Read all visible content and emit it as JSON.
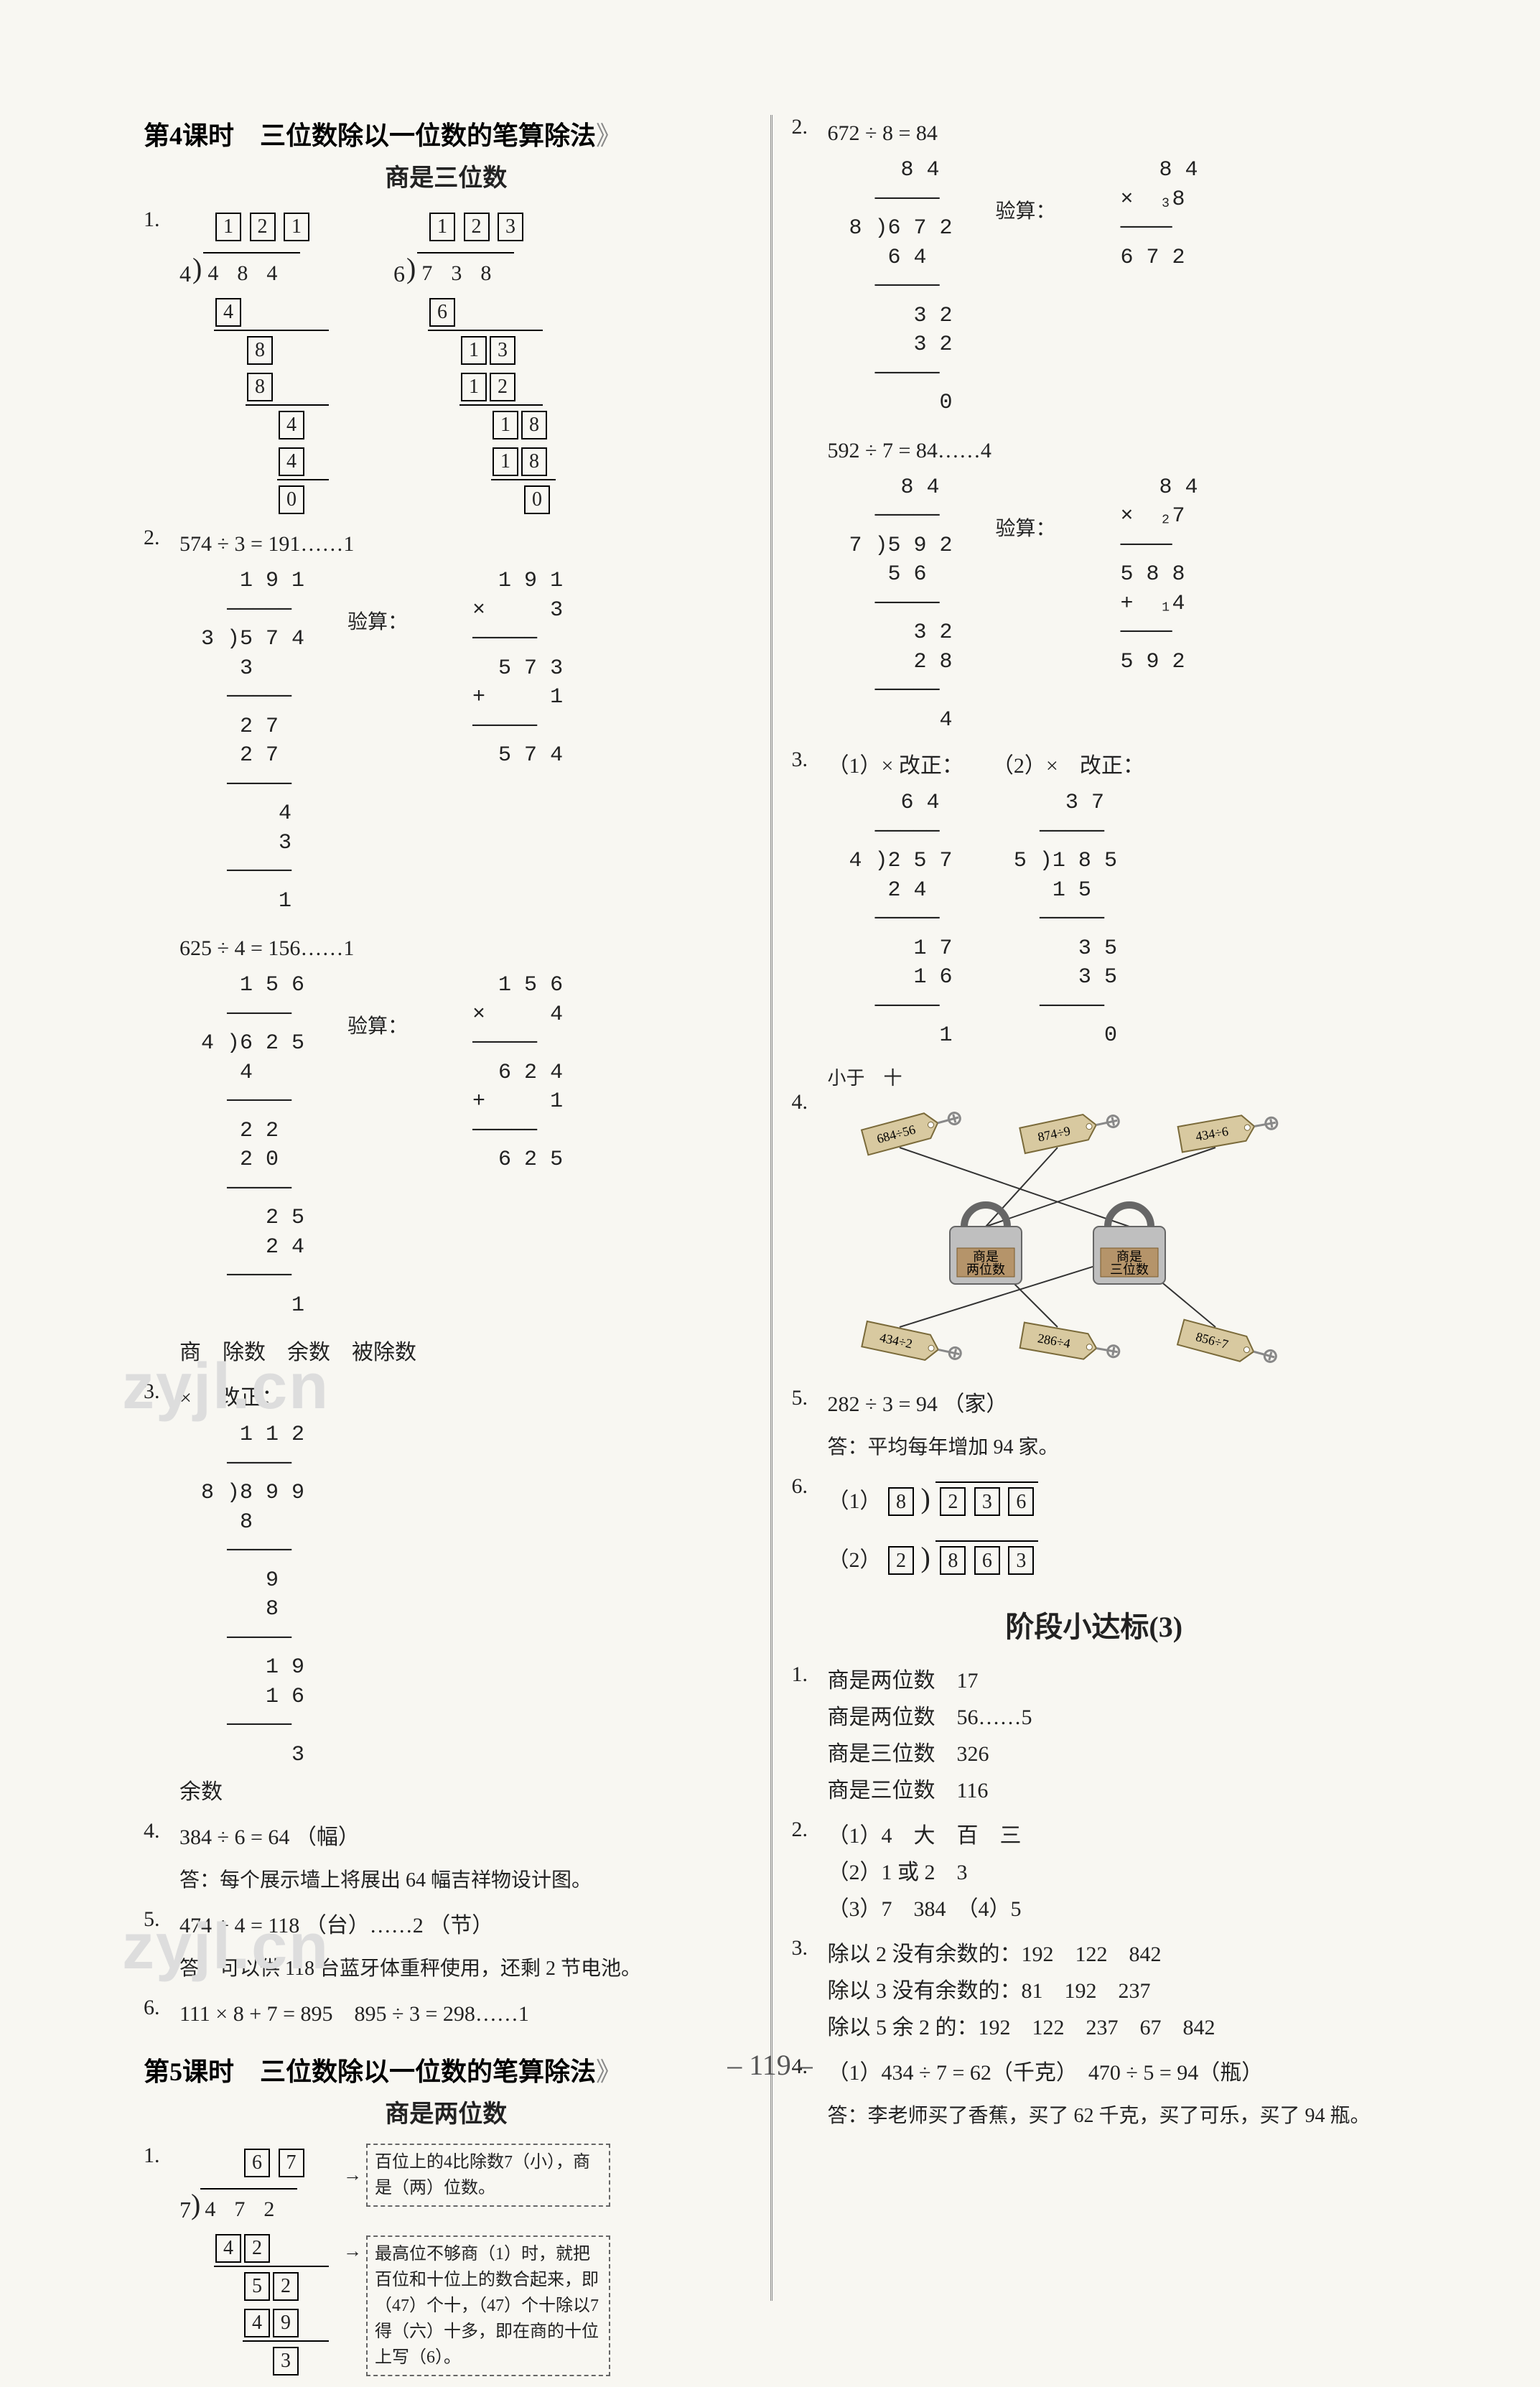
{
  "page_number": "119",
  "watermarks": [
    "zyjl.cn",
    "zyjl.cn"
  ],
  "left": {
    "lesson4": {
      "title": "第4课时　三位数除以一位数的笔算除法",
      "subtitle": "商是三位数",
      "q1": {
        "label": "1.",
        "div_a": {
          "quotient": [
            "1",
            "2",
            "1"
          ],
          "divisor": "4",
          "dividend": [
            "4",
            "8",
            "4"
          ],
          "steps": [
            "4",
            "8",
            "8",
            "4",
            "4",
            "0"
          ]
        },
        "div_b": {
          "quotient": [
            "1",
            "2",
            "3"
          ],
          "divisor": "6",
          "dividend": [
            "7",
            "3",
            "8"
          ],
          "steps": [
            "6",
            "1",
            "3",
            "1",
            "2",
            "1",
            "8",
            "1",
            "8",
            "0"
          ]
        }
      },
      "q2": {
        "label": "2.",
        "line1": "574 ÷ 3 = 191……1",
        "calc1_div": {
          "divisor": "3",
          "dividend": "574",
          "quotient": "191",
          "lines": [
            "3",
            "27",
            "27",
            "4",
            "3",
            "1"
          ]
        },
        "check_label": "验算：",
        "calc1_chk": [
          "  1 9 1",
          "×     3",
          "─────",
          "  5 7 3",
          "+     1",
          "─────",
          "  5 7 4"
        ],
        "line2": "625 ÷ 4 = 156……1",
        "calc2_div": {
          "divisor": "4",
          "dividend": "625",
          "quotient": "156",
          "lines": [
            "4",
            "22",
            "20",
            "25",
            "24",
            "1"
          ]
        },
        "calc2_chk": [
          "  1 5 6",
          "×     4",
          "─────",
          "  6 2 4",
          "+     1",
          "─────",
          "  6 2 5"
        ],
        "tail_terms": "商　除数　余数　被除数"
      },
      "q3": {
        "label": "3.",
        "mark": "×",
        "correct": "改正：",
        "div": {
          "divisor": "8",
          "dividend": "899",
          "quotient": "112",
          "lines": [
            "8",
            "9",
            "8",
            "19",
            "16",
            "3"
          ]
        },
        "tail": "余数"
      },
      "q4": {
        "label": "4.",
        "expr": "384 ÷ 6 = 64 （幅）",
        "answer": "答：每个展示墙上将展出 64 幅吉祥物设计图。"
      },
      "q5": {
        "label": "5.",
        "expr": "474 ÷ 4 = 118 （台）……2 （节）",
        "answer": "答：可以供 118 台蓝牙体重秤使用，还剩 2 节电池。"
      },
      "q6": {
        "label": "6.",
        "expr": "111 × 8 + 7 = 895　895 ÷ 3 = 298……1"
      }
    },
    "lesson5": {
      "title": "第5课时　三位数除以一位数的笔算除法",
      "subtitle": "商是两位数",
      "q1": {
        "label": "1.",
        "quotient_boxes": [
          "6",
          "7"
        ],
        "divisor": "7",
        "dividend": [
          "4",
          "7",
          "2"
        ],
        "step_boxes": [
          [
            "4",
            "2"
          ],
          [
            "5",
            "2"
          ],
          [
            "4",
            "9"
          ],
          [
            "3"
          ]
        ],
        "note_top": "百位上的4比除数7（小），商是（两）位数。",
        "note_right": "最高位不够商（1）时，就把百位和十位上的数合起来，即（47）个十，（47）个十除以7得（六）十多，即在商的十位上写（6）。"
      }
    }
  },
  "right": {
    "q2": {
      "label": "2.",
      "line1": "672 ÷ 8 = 84",
      "calc1_div": {
        "divisor": "8",
        "dividend": "672",
        "quotient": "84",
        "lines": [
          "64",
          "32",
          "32",
          "0"
        ]
      },
      "check_label": "验算：",
      "calc1_chk": [
        "   8 4",
        "×  ₃8",
        "────",
        "6 7 2"
      ],
      "line2": "592 ÷ 7 = 84……4",
      "calc2_div": {
        "divisor": "7",
        "dividend": "592",
        "quotient": "84",
        "lines": [
          "56",
          "32",
          "28",
          "4"
        ]
      },
      "calc2_chk": [
        "   8 4",
        "×  ₂7",
        "────",
        "5 8 8",
        "+  ₁4",
        "────",
        "5 9 2"
      ]
    },
    "q3": {
      "label": "3.",
      "part1": {
        "mark": "（1）×",
        "correct": "改正：",
        "div": {
          "divisor": "4",
          "dividend": "257",
          "quotient": "64",
          "lines": [
            "24",
            "17",
            "16",
            "1"
          ]
        }
      },
      "part2_label": "（2）×　改正：",
      "part2_div": {
        "divisor": "5",
        "dividend": "185",
        "quotient": "37",
        "lines": [
          "15",
          "35",
          "35",
          "0"
        ]
      },
      "tail": "小于　十"
    },
    "q4": {
      "label": "4.",
      "top_keys": [
        "684÷56",
        "874÷9",
        "434÷6"
      ],
      "locks": [
        "商是\n两位数",
        "商是\n三位数"
      ],
      "bottom_keys": [
        "434÷2",
        "286÷4",
        "856÷7"
      ],
      "colors": {
        "key_fill": "#d8c9a0",
        "key_stroke": "#7a6a3a",
        "lock_fill": "#bfbfbf",
        "lock_label_fill": "#b5946a",
        "line": "#333"
      }
    },
    "q5": {
      "label": "5.",
      "expr": "282 ÷ 3 = 94 （家）",
      "answer": "答：平均每年增加 94 家。"
    },
    "q6": {
      "label": "6.",
      "row1": {
        "divisor": "8",
        "dividend": [
          "2",
          "3",
          "6"
        ]
      },
      "row2": {
        "divisor": "2",
        "dividend": [
          "8",
          "6",
          "3"
        ]
      },
      "p1": "（1）",
      "p2": "（2）"
    },
    "milestone": {
      "title": "阶段小达标(3)",
      "q1": {
        "label": "1.",
        "lines": [
          "商是两位数　17",
          "商是两位数　56……5",
          "商是三位数　326",
          "商是三位数　116"
        ]
      },
      "q2": {
        "label": "2.",
        "lines": [
          "（1）4　大　百　三",
          "（2）1 或 2　3",
          "（3）7　384　（4）5"
        ]
      },
      "q3": {
        "label": "3.",
        "lines": [
          "除以 2 没有余数的：192　122　842",
          "除以 3 没有余数的：81　192　237",
          "除以 5 余 2 的：192　122　237　67　842"
        ]
      },
      "q4": {
        "label": "4.",
        "expr": "（1）434 ÷ 7 = 62（千克）　470 ÷ 5 = 94（瓶）",
        "answer": "答：李老师买了香蕉，买了 62 千克，买了可乐，买了 94 瓶。"
      }
    }
  }
}
